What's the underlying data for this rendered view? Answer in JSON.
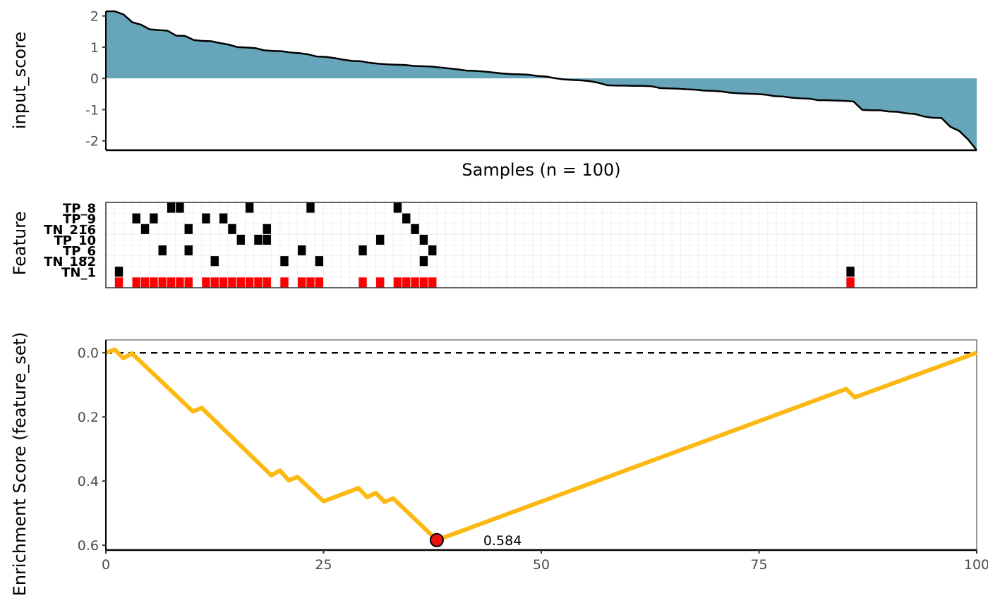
{
  "chart_data": [
    {
      "type": "area",
      "ylabel": "input_score",
      "xlabel": "Samples (n = 100)",
      "ylim": [
        -2.3,
        2.15
      ],
      "yticks": [
        2,
        1,
        0,
        -1,
        -2
      ],
      "ytick_labels": [
        "2",
        "1",
        "0",
        "-1",
        "-2"
      ],
      "fill_color": "#67a5ba",
      "x": "samples 1-100",
      "values": [
        2.15,
        2.15,
        2.05,
        1.8,
        1.72,
        1.57,
        1.55,
        1.53,
        1.37,
        1.36,
        1.23,
        1.2,
        1.19,
        1.13,
        1.08,
        1.0,
        0.99,
        0.97,
        0.9,
        0.88,
        0.87,
        0.83,
        0.81,
        0.77,
        0.7,
        0.69,
        0.65,
        0.6,
        0.56,
        0.55,
        0.5,
        0.47,
        0.45,
        0.44,
        0.43,
        0.4,
        0.39,
        0.38,
        0.35,
        0.32,
        0.29,
        0.25,
        0.24,
        0.22,
        0.19,
        0.16,
        0.14,
        0.13,
        0.12,
        0.08,
        0.06,
        0.01,
        -0.03,
        -0.05,
        -0.06,
        -0.09,
        -0.14,
        -0.22,
        -0.23,
        -0.23,
        -0.24,
        -0.24,
        -0.25,
        -0.31,
        -0.32,
        -0.33,
        -0.35,
        -0.36,
        -0.39,
        -0.4,
        -0.42,
        -0.46,
        -0.48,
        -0.49,
        -0.5,
        -0.52,
        -0.57,
        -0.58,
        -0.62,
        -0.64,
        -0.65,
        -0.7,
        -0.7,
        -0.71,
        -0.72,
        -0.74,
        -1.01,
        -1.02,
        -1.02,
        -1.06,
        -1.07,
        -1.12,
        -1.14,
        -1.22,
        -1.26,
        -1.27,
        -1.55,
        -1.68,
        -1.95,
        -2.3
      ]
    },
    {
      "type": "heatmap",
      "ylabel": "Feature",
      "n_samples": 100,
      "hit_color": "#000000",
      "set_color": "#ff0000",
      "rows": [
        {
          "label": "TP_8",
          "hits": [
            8,
            9,
            17,
            24,
            34
          ]
        },
        {
          "label": "TP_9",
          "hits": [
            4,
            6,
            12,
            14,
            35
          ]
        },
        {
          "label": "TN_216",
          "hits": [
            5,
            10,
            15,
            19,
            36
          ]
        },
        {
          "label": "TP_10",
          "hits": [
            16,
            18,
            19,
            32,
            37
          ]
        },
        {
          "label": "TP_6",
          "hits": [
            7,
            10,
            23,
            30,
            38
          ]
        },
        {
          "label": "TN_182",
          "hits": [
            13,
            21,
            25,
            37
          ]
        },
        {
          "label": "TN_1",
          "hits": [
            2,
            86
          ]
        }
      ],
      "feature_set_hits": [
        2,
        4,
        5,
        6,
        7,
        8,
        9,
        10,
        12,
        13,
        14,
        15,
        16,
        17,
        18,
        19,
        21,
        23,
        24,
        25,
        30,
        32,
        34,
        35,
        36,
        37,
        38,
        86
      ]
    },
    {
      "type": "line",
      "ylabel": "Enrichment Score (feature_set)",
      "xlim": [
        0,
        100
      ],
      "ylim": [
        0.615,
        -0.04
      ],
      "y_reversed": true,
      "xticks": [
        0,
        25,
        50,
        75,
        100
      ],
      "xtick_labels": [
        "0",
        "25",
        "50",
        "75",
        "100"
      ],
      "yticks": [
        0.0,
        0.2,
        0.4,
        0.6
      ],
      "ytick_labels": [
        "0.0",
        "0.2",
        "0.4",
        "0.6"
      ],
      "reference_line": 0,
      "line_color": "#fdb913",
      "points": [
        [
          0,
          0
        ],
        [
          1,
          -0.01
        ],
        [
          2,
          0.017
        ],
        [
          3,
          0.002
        ],
        [
          10,
          0.183
        ],
        [
          11,
          0.172
        ],
        [
          19,
          0.382
        ],
        [
          20,
          0.367
        ],
        [
          21,
          0.398
        ],
        [
          22,
          0.387
        ],
        [
          25,
          0.463
        ],
        [
          29,
          0.422
        ],
        [
          30,
          0.45
        ],
        [
          31,
          0.437
        ],
        [
          32,
          0.465
        ],
        [
          33,
          0.454
        ],
        [
          38,
          0.584
        ],
        [
          85,
          0.113
        ],
        [
          86,
          0.139
        ],
        [
          100,
          0
        ]
      ],
      "peak": {
        "x": 38,
        "y": 0.584,
        "label": "0.584",
        "color": "#ee1111"
      }
    }
  ]
}
